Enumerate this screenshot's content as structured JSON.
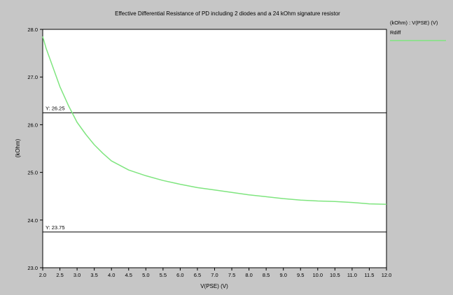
{
  "chart_data": {
    "type": "line",
    "title": "Effective Differential Resistance of PD including 2 diodes and a 24 kOhm signature resistor",
    "xlabel": "V(PSE) (V)",
    "ylabel": "(kOhm)",
    "xlim": [
      2.0,
      12.0
    ],
    "ylim": [
      23.0,
      28.0
    ],
    "x_ticks": [
      "2.0",
      "2.5",
      "3.0",
      "3.5",
      "4.0",
      "4.5",
      "5.0",
      "5.5",
      "6.0",
      "6.5",
      "7.0",
      "7.5",
      "8.0",
      "8.5",
      "9.0",
      "9.5",
      "10.0",
      "10.5",
      "11.0",
      "11.5",
      "12.0"
    ],
    "y_ticks": [
      "23.0",
      "24.0",
      "25.0",
      "26.0",
      "27.0",
      "28.0"
    ],
    "grid": false,
    "legend_position": "right",
    "legend_header": "(kOhm) : V(PSE) (V)",
    "colors": {
      "background": "#c6c6c6",
      "plot_area": "#ffffff",
      "series": "#7fe57f",
      "reference": "#000000"
    },
    "series": [
      {
        "name": "Rdiff",
        "x": [
          2.0,
          2.1,
          2.25,
          2.5,
          2.75,
          3.0,
          3.25,
          3.5,
          3.75,
          4.0,
          4.5,
          5.0,
          5.5,
          6.0,
          6.5,
          7.0,
          7.5,
          8.0,
          8.5,
          9.0,
          9.5,
          10.0,
          10.5,
          11.0,
          11.5,
          12.0
        ],
        "y": [
          27.85,
          27.6,
          27.3,
          26.8,
          26.4,
          26.05,
          25.8,
          25.58,
          25.4,
          25.24,
          25.05,
          24.93,
          24.83,
          24.75,
          24.68,
          24.63,
          24.58,
          24.53,
          24.49,
          24.45,
          24.42,
          24.4,
          24.39,
          24.37,
          24.34,
          24.33
        ]
      }
    ],
    "reference_lines": [
      {
        "label": "Y: 26.25",
        "y": 26.25
      },
      {
        "label": "Y: 23.75",
        "y": 23.75
      }
    ]
  }
}
